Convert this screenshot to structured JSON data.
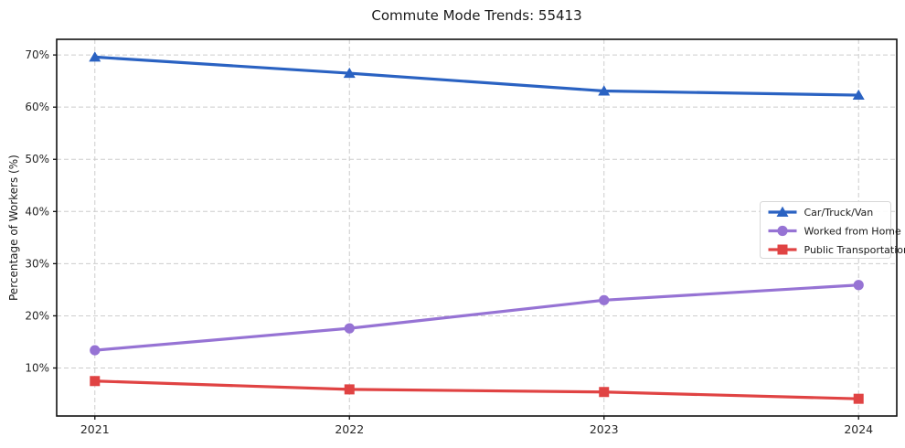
{
  "title": "Commute Mode Trends: 55413",
  "chart_data": {
    "type": "line",
    "title": "Commute Mode Trends: 55413",
    "xlabel": "",
    "ylabel": "Percentage of Workers (%)",
    "x": [
      2021,
      2022,
      2023,
      2024
    ],
    "xtick_labels": [
      "2021",
      "2022",
      "2023",
      "2024"
    ],
    "yticks": [
      10,
      20,
      30,
      40,
      50,
      60,
      70
    ],
    "ytick_labels": [
      "10%",
      "20%",
      "30%",
      "40%",
      "50%",
      "60%",
      "70%"
    ],
    "xlim": [
      2020.85,
      2024.15
    ],
    "ylim": [
      0.8,
      73.0
    ],
    "grid": true,
    "legend_position": "center right",
    "series": [
      {
        "name": "Car/Truck/Van",
        "values": [
          69.6,
          66.5,
          63.1,
          62.3
        ],
        "color": "#2a62c2",
        "marker": "triangle"
      },
      {
        "name": "Worked from Home",
        "values": [
          13.4,
          17.6,
          23.0,
          25.9
        ],
        "color": "#9673d4",
        "marker": "circle"
      },
      {
        "name": "Public Transportation",
        "values": [
          7.5,
          5.9,
          5.4,
          4.1
        ],
        "color": "#e04343",
        "marker": "square"
      }
    ]
  },
  "colors": {
    "grid": "#cdcdcd",
    "axis": "#111111",
    "tick_text": "#262626",
    "legend_border": "#d8d8d8",
    "background": "#ffffff"
  }
}
